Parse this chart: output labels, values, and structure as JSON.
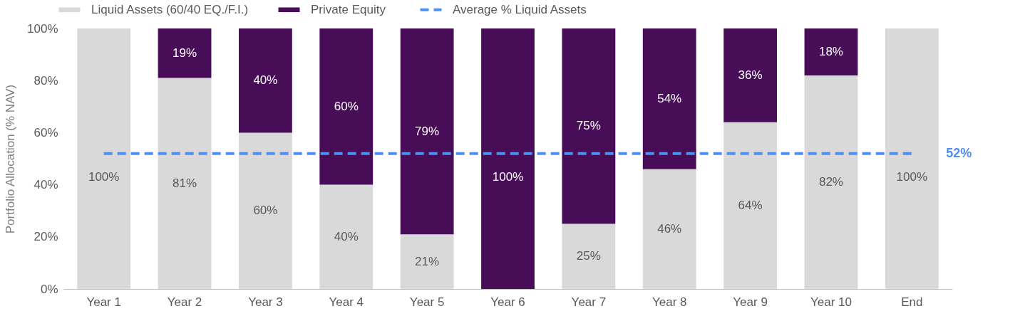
{
  "chart_data": {
    "type": "bar",
    "stacked": true,
    "ylabel": "Portfolio Allocation (% NAV)",
    "categories": [
      "Year 1",
      "Year 2",
      "Year 3",
      "Year 4",
      "Year 5",
      "Year 6",
      "Year 7",
      "Year 8",
      "Year 9",
      "Year 10",
      "End"
    ],
    "series": [
      {
        "name": "Liquid Assets (60/40 EQ./F.I.)",
        "color": "#d9d9d9",
        "values": [
          100,
          81,
          60,
          40,
          21,
          0,
          25,
          46,
          64,
          82,
          100
        ],
        "value_labels": [
          "100%",
          "81%",
          "60%",
          "40%",
          "21%",
          null,
          "25%",
          "46%",
          "64%",
          "82%",
          "100%"
        ]
      },
      {
        "name": "Private Equity",
        "color": "#470e57",
        "values": [
          0,
          19,
          40,
          60,
          79,
          100,
          75,
          54,
          36,
          18,
          0
        ],
        "value_labels": [
          null,
          "19%",
          "40%",
          "60%",
          "79%",
          "100%",
          "75%",
          "54%",
          "36%",
          "18%",
          null
        ]
      },
      {
        "name": "Average % Liquid Assets",
        "type": "line",
        "line_style": "dashed",
        "color": "#4f8ff0",
        "values": [
          52,
          52,
          52,
          52,
          52,
          52,
          52,
          52,
          52,
          52,
          52
        ]
      }
    ],
    "annotations": [
      {
        "text": "52%",
        "x": "End",
        "y": 52
      }
    ],
    "ylim": [
      0,
      100
    ],
    "yticks": [
      {
        "value": 0,
        "label": "0%"
      },
      {
        "value": 20,
        "label": "20%"
      },
      {
        "value": 40,
        "label": "40%"
      },
      {
        "value": 60,
        "label": "60%"
      },
      {
        "value": 80,
        "label": "80%"
      },
      {
        "value": 100,
        "label": "100%"
      }
    ],
    "grid": false,
    "legend": "top"
  }
}
